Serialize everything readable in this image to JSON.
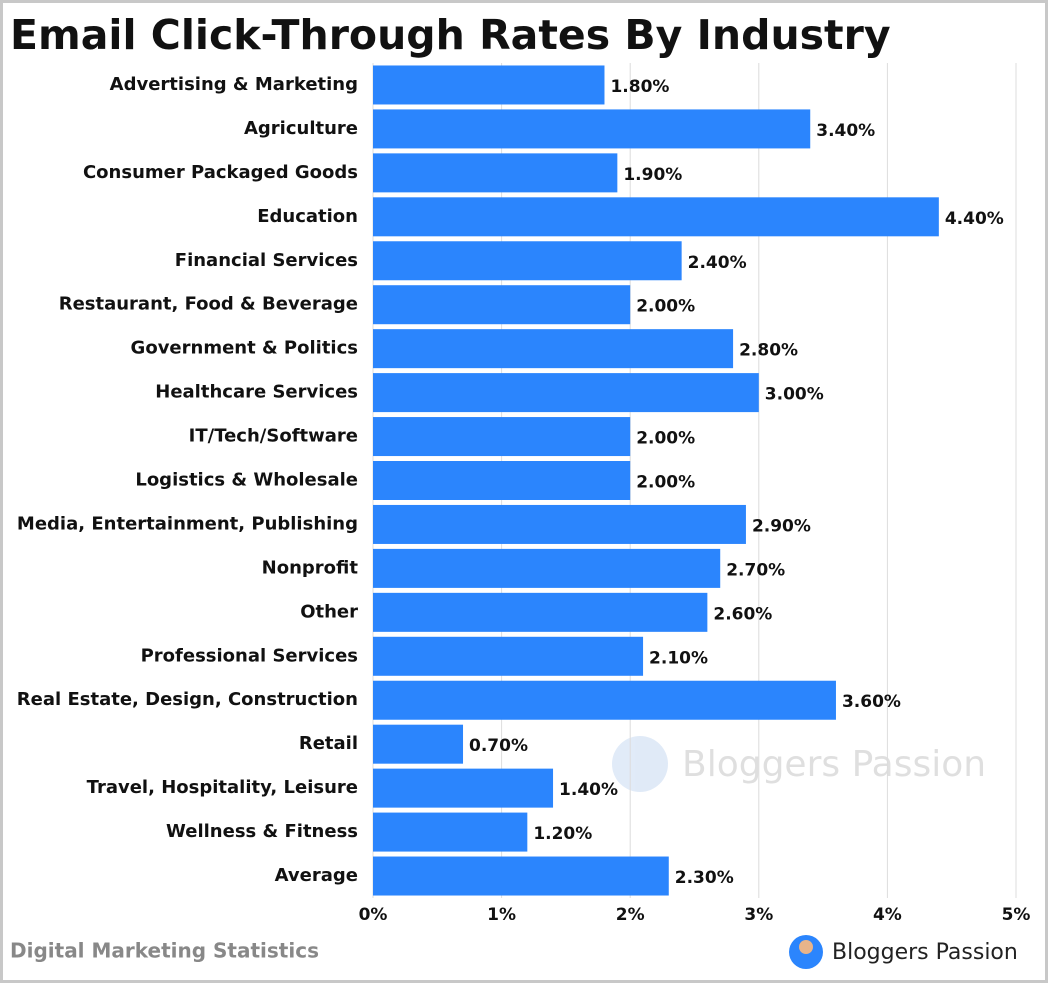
{
  "chart_data": {
    "type": "bar",
    "orientation": "horizontal",
    "title": "Email Click-Through Rates By Industry",
    "categories": [
      "Advertising & Marketing",
      "Agriculture",
      "Consumer Packaged Goods",
      "Education",
      "Financial Services",
      "Restaurant, Food & Beverage",
      "Government & Politics",
      "Healthcare Services",
      "IT/Tech/Software",
      "Logistics & Wholesale",
      "Media, Entertainment, Publishing",
      "Nonprofit",
      "Other",
      "Professional Services",
      "Real Estate, Design, Construction",
      "Retail",
      "Travel, Hospitality, Leisure",
      "Wellness & Fitness",
      "Average"
    ],
    "values": [
      1.8,
      3.4,
      1.9,
      4.4,
      2.4,
      2.0,
      2.8,
      3.0,
      2.0,
      2.0,
      2.9,
      2.7,
      2.6,
      2.1,
      3.6,
      0.7,
      1.4,
      1.2,
      2.3
    ],
    "value_labels": [
      "1.80%",
      "3.40%",
      "1.90%",
      "4.40%",
      "2.40%",
      "2.00%",
      "2.80%",
      "3.00%",
      "2.00%",
      "2.00%",
      "2.90%",
      "2.70%",
      "2.60%",
      "2.10%",
      "3.60%",
      "0.70%",
      "1.40%",
      "1.20%",
      "2.30%"
    ],
    "color": "#2b85fd",
    "xlim": [
      0,
      5
    ],
    "xticks": [
      {
        "value": 0,
        "label": "0%"
      },
      {
        "value": 1,
        "label": "1%"
      },
      {
        "value": 2,
        "label": "2%"
      },
      {
        "value": 3,
        "label": "3%"
      },
      {
        "value": 4,
        "label": "4%"
      },
      {
        "value": 5,
        "label": "5%"
      }
    ],
    "grid": true,
    "watermark": "Bloggers Passion",
    "footer_left": "Digital Marketing Statistics",
    "footer_brand": "Bloggers Passion"
  }
}
